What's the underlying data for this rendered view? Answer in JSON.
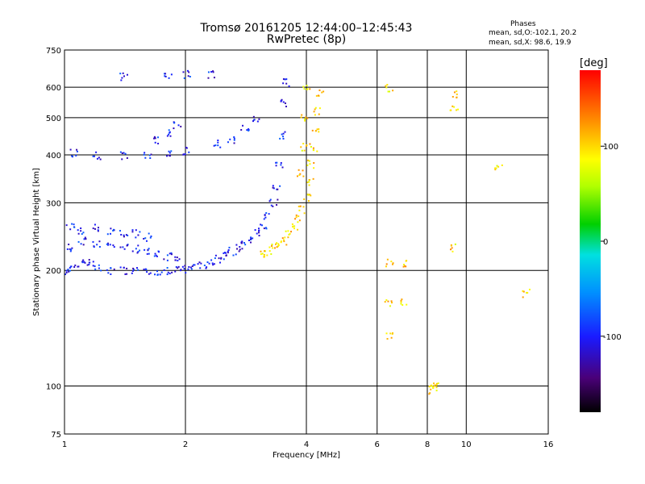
{
  "chart_data": {
    "type": "scatter",
    "title": "Tromsø 20161205 12:44:00–12:45:43",
    "subtitle": "RwPretec (8p)",
    "xlabel": "Frequency [MHz]",
    "ylabel": "Stationary phase Virtual Height [km]",
    "x_scale": "log",
    "y_scale": "log",
    "xlim": [
      1,
      16
    ],
    "ylim": [
      75,
      750
    ],
    "x_ticks": [
      1,
      2,
      4,
      6,
      8,
      10,
      16
    ],
    "y_ticks": [
      75,
      100,
      200,
      300,
      400,
      500,
      600,
      750
    ],
    "grid": true,
    "phase_stats": {
      "header": "Phases",
      "line_o": "mean, sd,O:-102.1, 20.2",
      "line_x": "mean, sd,X:  98.6, 19.9"
    },
    "colorbar": {
      "label": "[deg]",
      "range": [
        -180,
        180
      ],
      "ticks": [
        100,
        0,
        -100
      ],
      "colormap": "rainbow"
    },
    "series": [
      {
        "description_of_mode": "O",
        "points": [
          [
            1.02,
            200
          ],
          [
            1.05,
            205
          ],
          [
            1.1,
            210
          ],
          [
            1.15,
            210
          ],
          [
            1.2,
            205
          ],
          [
            1.3,
            200
          ],
          [
            1.4,
            200
          ],
          [
            1.5,
            200
          ],
          [
            1.6,
            198
          ],
          [
            1.7,
            200
          ],
          [
            1.8,
            200
          ],
          [
            1.9,
            202
          ],
          [
            2.0,
            202
          ],
          [
            2.1,
            205
          ],
          [
            2.2,
            208
          ],
          [
            2.3,
            210
          ],
          [
            2.4,
            215
          ],
          [
            2.5,
            220
          ],
          [
            2.6,
            225
          ],
          [
            2.7,
            230
          ],
          [
            2.8,
            235
          ],
          [
            2.9,
            242
          ],
          [
            3.0,
            250
          ],
          [
            3.1,
            262
          ],
          [
            3.2,
            280
          ],
          [
            3.3,
            300
          ],
          [
            3.35,
            330
          ],
          [
            3.4,
            380
          ],
          [
            3.45,
            450
          ],
          [
            3.5,
            550
          ],
          [
            3.55,
            620
          ],
          [
            1.02,
            230
          ],
          [
            1.1,
            240
          ],
          [
            1.2,
            235
          ],
          [
            1.3,
            232
          ],
          [
            1.4,
            230
          ],
          [
            1.5,
            228
          ],
          [
            1.6,
            225
          ],
          [
            1.7,
            222
          ],
          [
            1.8,
            218
          ],
          [
            1.9,
            215
          ],
          [
            1.03,
            260
          ],
          [
            1.1,
            255
          ],
          [
            1.2,
            260
          ],
          [
            1.3,
            255
          ],
          [
            1.4,
            252
          ],
          [
            1.5,
            250
          ],
          [
            1.6,
            245
          ],
          [
            1.05,
            405
          ],
          [
            1.2,
            400
          ],
          [
            1.4,
            400
          ],
          [
            1.6,
            402
          ],
          [
            1.8,
            405
          ],
          [
            2.0,
            410
          ],
          [
            1.7,
            440
          ],
          [
            1.8,
            460
          ],
          [
            1.9,
            480
          ],
          [
            2.4,
            430
          ],
          [
            2.6,
            440
          ],
          [
            2.8,
            470
          ],
          [
            3.0,
            500
          ],
          [
            1.4,
            640
          ],
          [
            1.8,
            640
          ],
          [
            2.0,
            650
          ],
          [
            2.3,
            650
          ]
        ],
        "phase_deg": -100
      },
      {
        "description_of_mode": "X",
        "points": [
          [
            3.1,
            220
          ],
          [
            3.2,
            225
          ],
          [
            3.3,
            230
          ],
          [
            3.4,
            235
          ],
          [
            3.5,
            240
          ],
          [
            3.6,
            250
          ],
          [
            3.7,
            262
          ],
          [
            3.8,
            275
          ],
          [
            3.9,
            290
          ],
          [
            4.0,
            310
          ],
          [
            4.05,
            340
          ],
          [
            4.1,
            380
          ],
          [
            4.15,
            420
          ],
          [
            4.2,
            470
          ],
          [
            4.25,
            520
          ],
          [
            4.3,
            580
          ],
          [
            4.0,
            600
          ],
          [
            3.95,
            500
          ],
          [
            3.9,
            420
          ],
          [
            3.85,
            360
          ],
          [
            6.4,
            600
          ],
          [
            6.4,
            210
          ],
          [
            6.4,
            165
          ],
          [
            6.4,
            135
          ],
          [
            7.0,
            210
          ],
          [
            7.0,
            165
          ],
          [
            8.2,
            100
          ],
          [
            8.2,
            98
          ],
          [
            8.4,
            100
          ],
          [
            9.3,
            575
          ],
          [
            9.3,
            525
          ],
          [
            9.3,
            230
          ],
          [
            12.0,
            375
          ],
          [
            14.0,
            175
          ]
        ],
        "phase_deg": 100
      }
    ]
  }
}
